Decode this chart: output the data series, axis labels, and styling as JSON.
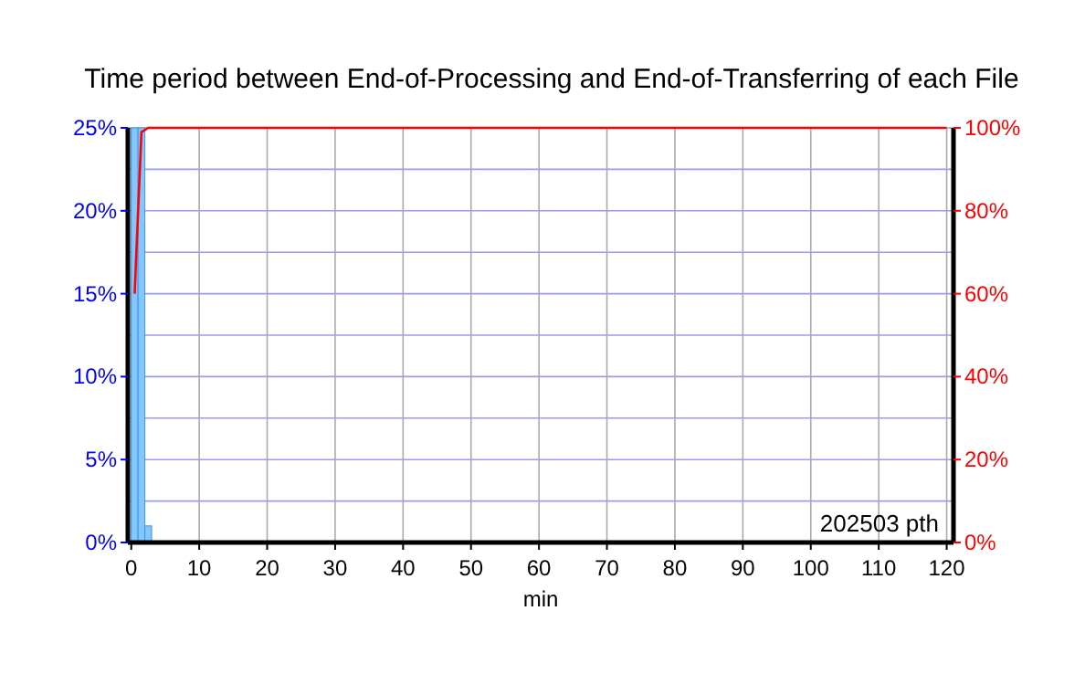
{
  "chart_data": {
    "type": "histogram",
    "title": "Time period between End-of-Processing and End-of-Transferring of each File",
    "xlabel": "min",
    "bins": [
      0,
      1,
      2,
      3
    ],
    "series": [
      {
        "color": "#80c8ff",
        "values": [
          25,
          25,
          1
        ]
      },
      {
        "type": "line",
        "axis": "y2",
        "color": "#ff0000",
        "x": [
          0.5,
          1.5,
          2.5,
          120
        ],
        "values": [
          60,
          99,
          100,
          100
        ]
      }
    ],
    "xlim": [
      -0.5,
      121
    ],
    "xticks": [
      0,
      10,
      20,
      30,
      40,
      50,
      60,
      70,
      80,
      90,
      100,
      110,
      120
    ],
    "ylim": [
      0,
      25
    ],
    "yticks": [
      {
        "value": 0,
        "label": "0%"
      },
      {
        "value": 2.5,
        "label": null
      },
      {
        "value": 5,
        "label": "5%"
      },
      {
        "value": 7.5,
        "label": null
      },
      {
        "value": 10,
        "label": "10%"
      },
      {
        "value": 12.5,
        "label": null
      },
      {
        "value": 15,
        "label": "15%"
      },
      {
        "value": 17.5,
        "label": null
      },
      {
        "value": 20,
        "label": "20%"
      },
      {
        "value": 22.5,
        "label": null
      },
      {
        "value": 25,
        "label": "25%"
      }
    ],
    "y2lim": [
      0,
      100
    ],
    "y2ticks": [
      {
        "value": 0,
        "label": "0%"
      },
      {
        "value": 20,
        "label": "20%"
      },
      {
        "value": 40,
        "label": "40%"
      },
      {
        "value": 60,
        "label": "60%"
      },
      {
        "value": 80,
        "label": "80%"
      },
      {
        "value": 100,
        "label": "100%"
      }
    ],
    "grid": true,
    "annotations": [
      "202503 pth"
    ]
  }
}
